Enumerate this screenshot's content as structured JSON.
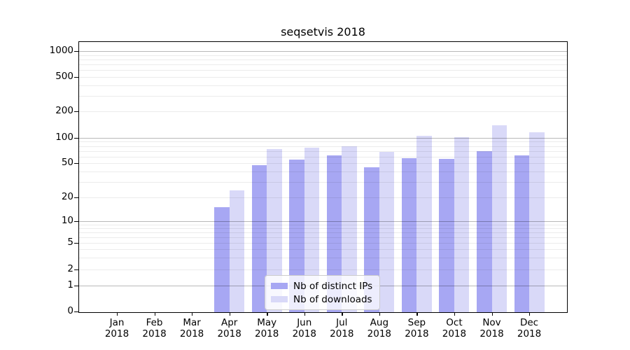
{
  "chart_data": {
    "type": "bar",
    "title": "seqsetvis 2018",
    "categories": [
      "Jan",
      "Feb",
      "Mar",
      "Apr",
      "May",
      "Jun",
      "Jul",
      "Aug",
      "Sep",
      "Oct",
      "Nov",
      "Dec"
    ],
    "x_tick_second_line": "2018",
    "series": [
      {
        "name": "Nb of distinct IPs",
        "color": "#a7a7f3",
        "values": [
          0,
          0,
          0,
          15,
          47,
          55,
          62,
          45,
          57,
          56,
          70,
          62
        ]
      },
      {
        "name": "Nb of downloads",
        "color": "#d9d9f8",
        "values": [
          0,
          0,
          0,
          24,
          73,
          77,
          80,
          68,
          105,
          101,
          140,
          115
        ]
      }
    ],
    "yticks": [
      "0",
      "1",
      "2",
      "5",
      "10",
      "20",
      "50",
      "100",
      "200",
      "500",
      "1000"
    ],
    "ytick_values": [
      0,
      1,
      2,
      5,
      10,
      20,
      50,
      100,
      200,
      500,
      1000
    ],
    "yscale": "log-like (symlog near zero)",
    "ylim": [
      0,
      1000
    ],
    "xlabel": "",
    "ylabel": "",
    "grid": "horizontal, major lines at 1/10/100/1000, light minor lines",
    "legend_position": "lower center"
  },
  "colors": {
    "background": "#ffffff",
    "axis": "#000000",
    "major_grid": "#b8b8b8",
    "minor_grid": "#ececec",
    "legend_border": "#cccccc"
  }
}
